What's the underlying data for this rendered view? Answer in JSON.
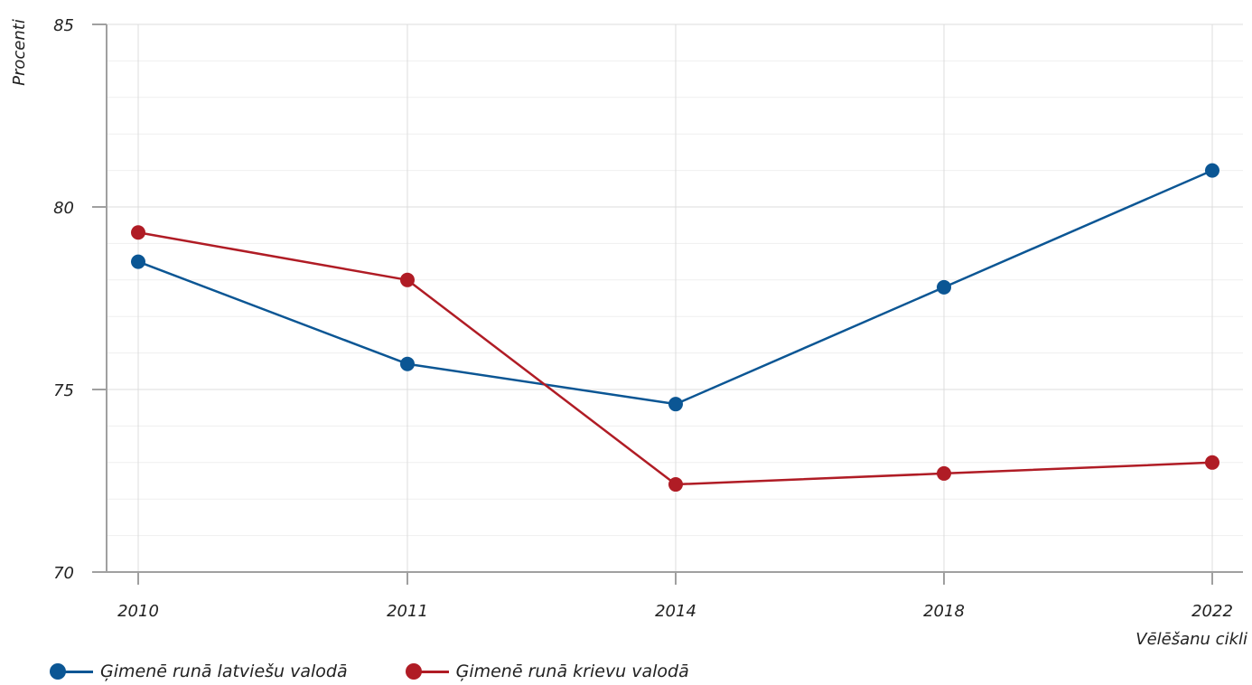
{
  "chart_data": {
    "type": "line",
    "x": [
      "2010",
      "2011",
      "2014",
      "2018",
      "2022"
    ],
    "series": [
      {
        "name": "Ģimenē runā latviešu valodā",
        "color": "#0b5694",
        "values": [
          78.5,
          75.7,
          74.6,
          77.8,
          81.0
        ]
      },
      {
        "name": "Ģimenē runā krievu valodā",
        "color": "#b01c25",
        "values": [
          79.3,
          78.0,
          72.4,
          72.7,
          73.0
        ]
      }
    ],
    "xlabel": "Vēlēšanu cikli",
    "ylabel": "Procenti",
    "ylim": [
      70,
      85
    ],
    "yticks": [
      "70",
      "75",
      "80",
      "85"
    ],
    "grid": true,
    "legend_position": "bottom-left"
  }
}
